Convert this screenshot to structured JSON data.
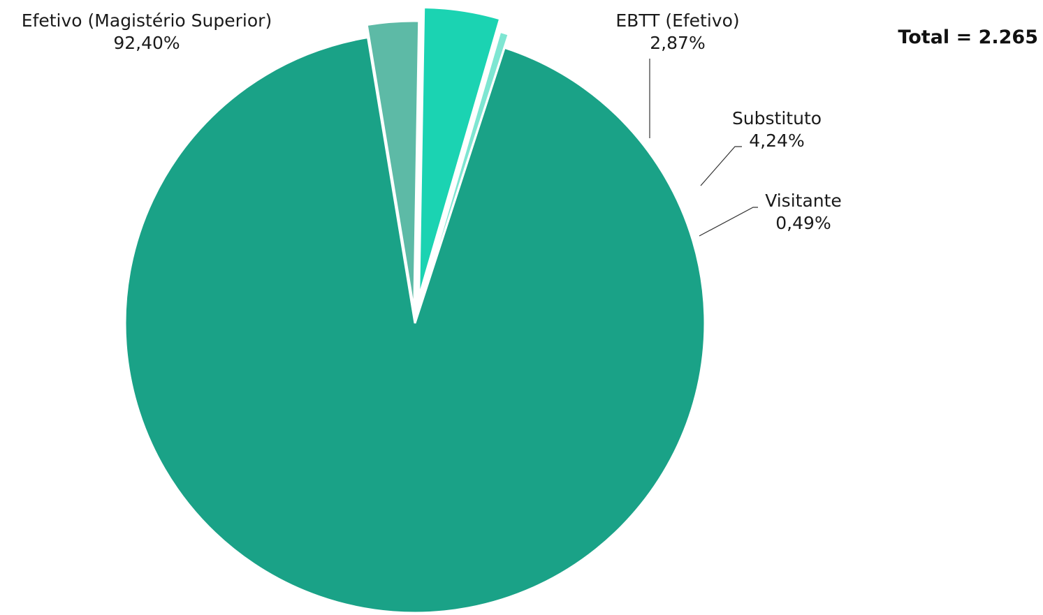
{
  "chart_data": {
    "type": "pie",
    "total_label": "Total = 2.265",
    "slices": [
      {
        "name": "Efetivo (Magistério Superior)",
        "value": 92.4,
        "label": "92,40%",
        "color": "#1aa287"
      },
      {
        "name": "EBTT (Efetivo)",
        "value": 2.87,
        "label": "2,87%",
        "color": "#5dbaa6"
      },
      {
        "name": "Substituto",
        "value": 4.24,
        "label": "4,24%",
        "color": "#1bd3b2"
      },
      {
        "name": "Visitante",
        "value": 0.49,
        "label": "0,49%",
        "color": "#7ee6d2"
      }
    ]
  }
}
